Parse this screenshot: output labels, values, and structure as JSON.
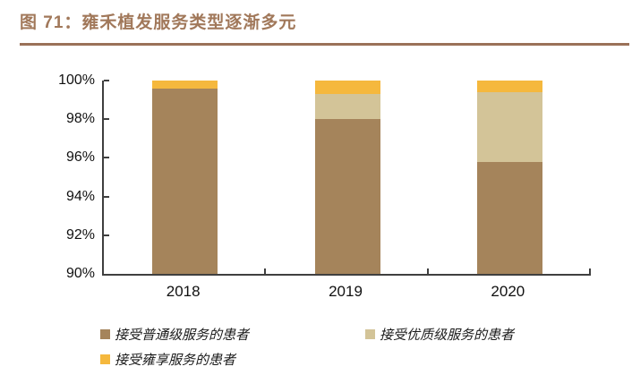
{
  "header": {
    "title": "图 71：雍禾植发服务类型逐渐多元",
    "title_color": "#A1785A",
    "rule_color": "#9A7158"
  },
  "chart_data": {
    "type": "bar",
    "stacked": true,
    "percent_stacked": true,
    "title": "图 71：雍禾植发服务类型逐渐多元",
    "categories": [
      "2018",
      "2019",
      "2020"
    ],
    "series": [
      {
        "name": "接受普通级服务的患者",
        "color": "#A5845B",
        "values": [
          99.6,
          98.0,
          95.8
        ]
      },
      {
        "name": "接受优质级服务的患者",
        "color": "#D3C498",
        "values": [
          0.0,
          1.3,
          3.6
        ]
      },
      {
        "name": "接受雍享服务的患者",
        "color": "#F5B83D",
        "values": [
          0.4,
          0.7,
          0.6
        ]
      }
    ],
    "xlabel": "",
    "ylabel": "",
    "ylim": [
      90,
      100
    ],
    "y_tick_labels": [
      "100%",
      "98%",
      "96%",
      "94%",
      "92%",
      "90%"
    ],
    "axis_color": "#3F3F3F",
    "grid": false,
    "legend_position": "bottom-left"
  }
}
